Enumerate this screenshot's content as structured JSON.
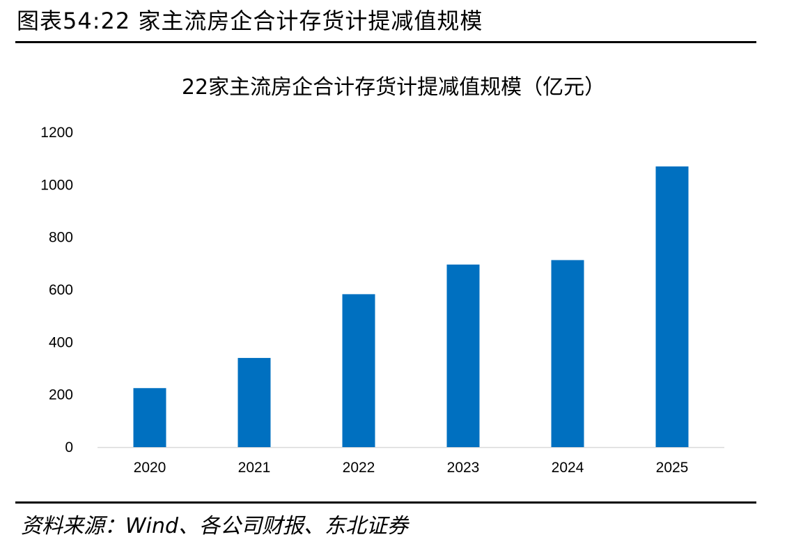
{
  "figure": {
    "header": "图表54:22 家主流房企合计存货计提减值规模",
    "source": "资料来源：Wind、各公司财报、东北证券"
  },
  "chart_data": {
    "type": "bar",
    "title": "22家主流房企合计存货计提减值规模（亿元）",
    "xlabel": "",
    "ylabel": "",
    "categories": [
      "2020",
      "2021",
      "2022",
      "2023",
      "2024",
      "2025"
    ],
    "values": [
      225,
      340,
      583,
      696,
      713,
      1070
    ],
    "ylim": [
      0,
      1200
    ],
    "yticks": [
      0,
      200,
      400,
      600,
      800,
      1000,
      1200
    ],
    "grid": false,
    "legend": "none",
    "bar_color": "#0070C0"
  }
}
